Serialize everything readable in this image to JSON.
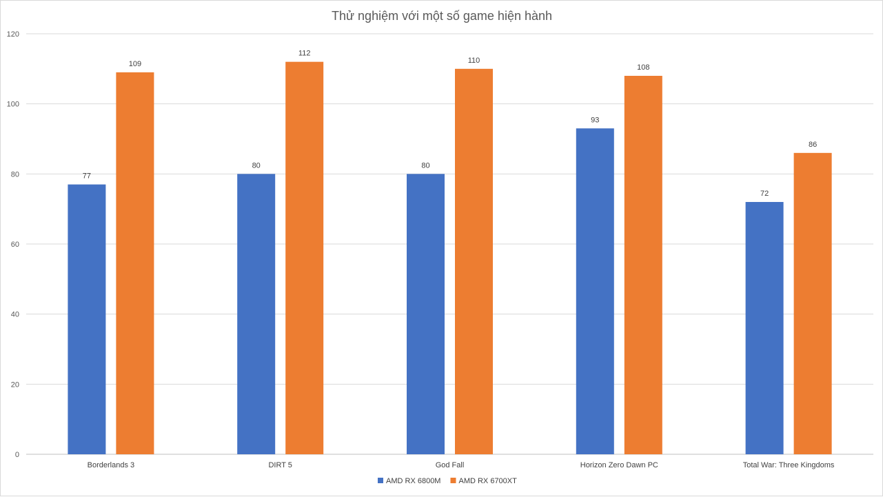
{
  "chart_data": {
    "type": "bar",
    "title": "Thử nghiệm với một số game hiện hành",
    "xlabel": "",
    "ylabel": "",
    "ylim": [
      0,
      120
    ],
    "yticks": [
      0,
      20,
      40,
      60,
      80,
      100,
      120
    ],
    "grid": true,
    "legend_position": "bottom",
    "categories": [
      "Borderlands 3",
      "DIRT 5",
      "God Fall",
      "Horizon Zero Dawn PC",
      "Total War: Three Kingdoms"
    ],
    "series": [
      {
        "name": "AMD RX 6800M",
        "color": "#4472c4",
        "values": [
          77,
          80,
          80,
          93,
          72
        ]
      },
      {
        "name": "AMD RX 6700XT",
        "color": "#ed7d31",
        "values": [
          109,
          112,
          110,
          108,
          86
        ]
      }
    ],
    "data_labels": true
  }
}
